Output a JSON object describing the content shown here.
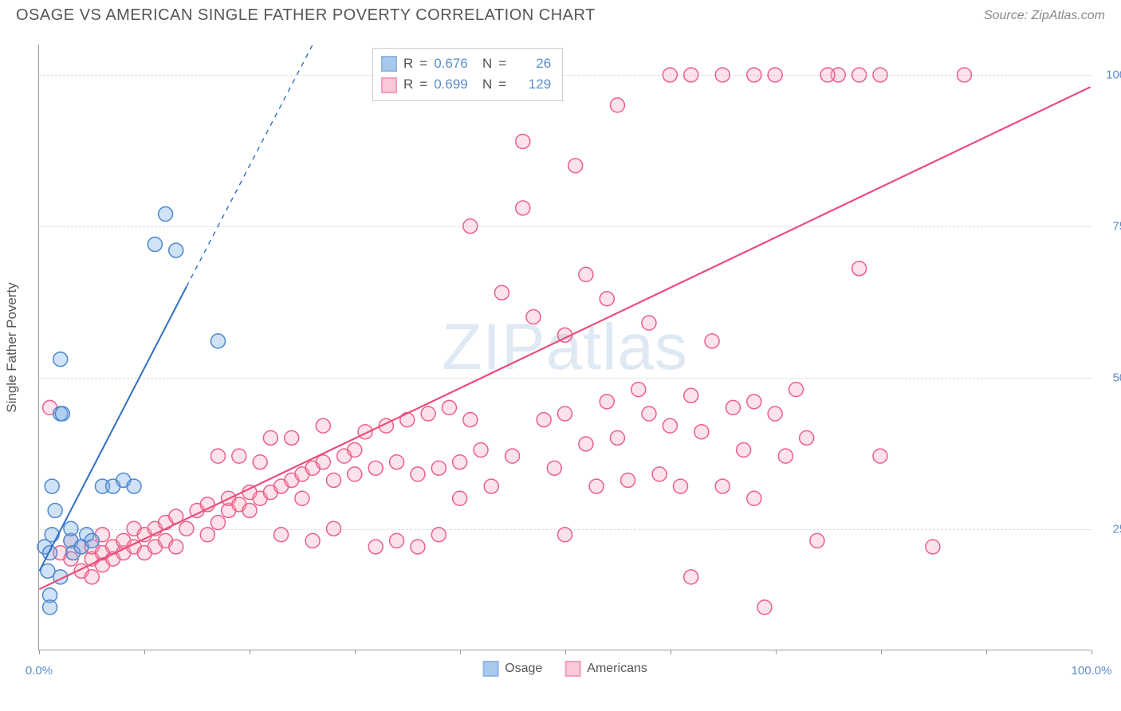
{
  "header": {
    "title": "OSAGE VS AMERICAN SINGLE FATHER POVERTY CORRELATION CHART",
    "source": "Source: ZipAtlas.com"
  },
  "chart": {
    "type": "scatter",
    "ylabel": "Single Father Poverty",
    "watermark": "ZIPatlas",
    "background_color": "#ffffff",
    "grid_color": "#dddddd",
    "axis_color": "#999999",
    "tick_label_color": "#5b8ecb",
    "xlim": [
      0,
      100
    ],
    "ylim": [
      5,
      105
    ],
    "xtick_positions": [
      0,
      10,
      20,
      30,
      40,
      50,
      60,
      70,
      80,
      90,
      100
    ],
    "xtick_labels": {
      "0": "0.0%",
      "100": "100.0%"
    },
    "ytick_positions": [
      25,
      50,
      75,
      100
    ],
    "ytick_labels": {
      "25": "25.0%",
      "50": "50.0%",
      "75": "75.0%",
      "100": "100.0%"
    },
    "marker_radius": 9,
    "marker_fill_opacity": 0.32,
    "marker_stroke_width": 1.5,
    "series": {
      "osage": {
        "label": "Osage",
        "color": "#6ea6e2",
        "stroke": "#4c88cc",
        "r_value": "0.676",
        "n_value": "26",
        "trend": {
          "solid": {
            "x1": 0,
            "y1": 18,
            "x2": 14,
            "y2": 65
          },
          "dashed": {
            "x1": 14,
            "y1": 65,
            "x2": 26,
            "y2": 105
          },
          "line_width": 2,
          "line_color": "#2e6fc1"
        },
        "points": [
          [
            0.5,
            22
          ],
          [
            0.8,
            18
          ],
          [
            1,
            14
          ],
          [
            1,
            21
          ],
          [
            1.2,
            24
          ],
          [
            1.5,
            28
          ],
          [
            1.2,
            32
          ],
          [
            2,
            44
          ],
          [
            2.2,
            44
          ],
          [
            2,
            53
          ],
          [
            3,
            23
          ],
          [
            3,
            25
          ],
          [
            3.2,
            21
          ],
          [
            4,
            22
          ],
          [
            4.5,
            24
          ],
          [
            5,
            23
          ],
          [
            6,
            32
          ],
          [
            7,
            32
          ],
          [
            8,
            33
          ],
          [
            9,
            32
          ],
          [
            11,
            72
          ],
          [
            12,
            77
          ],
          [
            13,
            71
          ],
          [
            17,
            56
          ],
          [
            1,
            12
          ],
          [
            2,
            17
          ]
        ]
      },
      "americans": {
        "label": "Americans",
        "color": "#f6a6bd",
        "stroke": "#ec5f87",
        "r_value": "0.699",
        "n_value": "129",
        "trend": {
          "solid": {
            "x1": 0,
            "y1": 15,
            "x2": 100,
            "y2": 98
          },
          "line_width": 2.2,
          "line_color": "#ec4d7c"
        },
        "points": [
          [
            1,
            45
          ],
          [
            2,
            21
          ],
          [
            3,
            20
          ],
          [
            3,
            23
          ],
          [
            4,
            18
          ],
          [
            4,
            22
          ],
          [
            5,
            17
          ],
          [
            5,
            20
          ],
          [
            5,
            22
          ],
          [
            6,
            19
          ],
          [
            6,
            21
          ],
          [
            6,
            24
          ],
          [
            7,
            20
          ],
          [
            7,
            22
          ],
          [
            8,
            21
          ],
          [
            8,
            23
          ],
          [
            9,
            22
          ],
          [
            9,
            25
          ],
          [
            10,
            21
          ],
          [
            10,
            24
          ],
          [
            11,
            22
          ],
          [
            11,
            25
          ],
          [
            12,
            23
          ],
          [
            12,
            26
          ],
          [
            13,
            22
          ],
          [
            13,
            27
          ],
          [
            14,
            25
          ],
          [
            15,
            28
          ],
          [
            16,
            24
          ],
          [
            16,
            29
          ],
          [
            17,
            26
          ],
          [
            17,
            37
          ],
          [
            18,
            28
          ],
          [
            18,
            30
          ],
          [
            19,
            29
          ],
          [
            19,
            37
          ],
          [
            20,
            28
          ],
          [
            20,
            31
          ],
          [
            21,
            30
          ],
          [
            21,
            36
          ],
          [
            22,
            31
          ],
          [
            22,
            40
          ],
          [
            23,
            32
          ],
          [
            23,
            24
          ],
          [
            24,
            33
          ],
          [
            24,
            40
          ],
          [
            25,
            30
          ],
          [
            25,
            34
          ],
          [
            26,
            35
          ],
          [
            26,
            23
          ],
          [
            27,
            36
          ],
          [
            27,
            42
          ],
          [
            28,
            33
          ],
          [
            28,
            25
          ],
          [
            29,
            37
          ],
          [
            30,
            38
          ],
          [
            30,
            34
          ],
          [
            31,
            41
          ],
          [
            32,
            35
          ],
          [
            32,
            22
          ],
          [
            33,
            42
          ],
          [
            34,
            23
          ],
          [
            34,
            36
          ],
          [
            35,
            43
          ],
          [
            36,
            34
          ],
          [
            36,
            22
          ],
          [
            37,
            44
          ],
          [
            38,
            35
          ],
          [
            38,
            24
          ],
          [
            39,
            45
          ],
          [
            40,
            36
          ],
          [
            40,
            30
          ],
          [
            41,
            43
          ],
          [
            41,
            75
          ],
          [
            42,
            38
          ],
          [
            43,
            32
          ],
          [
            44,
            64
          ],
          [
            45,
            37
          ],
          [
            46,
            89
          ],
          [
            46,
            78
          ],
          [
            47,
            60
          ],
          [
            48,
            43
          ],
          [
            49,
            35
          ],
          [
            50,
            24
          ],
          [
            50,
            44
          ],
          [
            50,
            57
          ],
          [
            51,
            85
          ],
          [
            52,
            67
          ],
          [
            52,
            39
          ],
          [
            53,
            32
          ],
          [
            54,
            46
          ],
          [
            54,
            63
          ],
          [
            55,
            40
          ],
          [
            55,
            95
          ],
          [
            56,
            33
          ],
          [
            57,
            48
          ],
          [
            58,
            44
          ],
          [
            58,
            59
          ],
          [
            59,
            34
          ],
          [
            60,
            42
          ],
          [
            61,
            32
          ],
          [
            62,
            47
          ],
          [
            62,
            17
          ],
          [
            63,
            41
          ],
          [
            64,
            56
          ],
          [
            65,
            32
          ],
          [
            66,
            45
          ],
          [
            67,
            38
          ],
          [
            68,
            46
          ],
          [
            68,
            30
          ],
          [
            69,
            12
          ],
          [
            70,
            44
          ],
          [
            71,
            37
          ],
          [
            72,
            48
          ],
          [
            73,
            40
          ],
          [
            74,
            23
          ],
          [
            76,
            100
          ],
          [
            78,
            68
          ],
          [
            80,
            37
          ],
          [
            85,
            22
          ],
          [
            60,
            100
          ],
          [
            62,
            100
          ],
          [
            65,
            100
          ],
          [
            68,
            100
          ],
          [
            70,
            100
          ],
          [
            75,
            100
          ],
          [
            78,
            100
          ],
          [
            80,
            100
          ],
          [
            88,
            100
          ]
        ]
      }
    },
    "stats_box": {
      "labels": {
        "r": "R",
        "eq": "=",
        "n": "N"
      }
    },
    "legend": {
      "items": [
        "osage",
        "americans"
      ]
    }
  }
}
